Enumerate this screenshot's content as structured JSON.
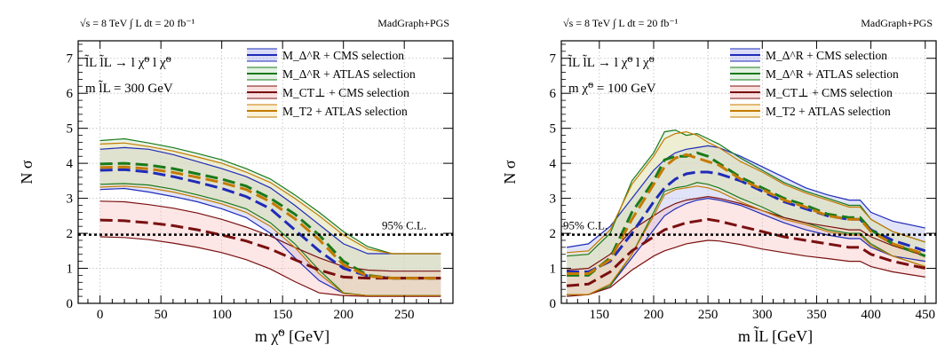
{
  "chart_data": [
    {
      "type": "line",
      "header_left": "√s = 8 TeV ∫ L dt = 20 fb⁻¹",
      "header_right": "MadGraph+PGS",
      "process": "l̃L l̃L → l χ̃⁰ l χ̃⁰",
      "fixed_mass": "m l̃L = 300 GeV",
      "xlabel": "m χ̃⁰ [GeV]",
      "ylabel": "N σ",
      "xlim": [
        -18,
        290
      ],
      "ylim": [
        0,
        7.5
      ],
      "xticks": [
        0,
        50,
        100,
        150,
        200,
        250
      ],
      "yticks": [
        0,
        1,
        2,
        3,
        4,
        5,
        6,
        7
      ],
      "grid": true,
      "legend_position": "top-right",
      "reference_line": {
        "value": 1.96,
        "label": "95% C.L."
      },
      "x": [
        0,
        20,
        40,
        60,
        80,
        100,
        120,
        140,
        160,
        180,
        200,
        220,
        240,
        260,
        280
      ],
      "series": [
        {
          "name": "M_Δ^R + CMS selection",
          "color": "#1f2bb8",
          "fill": "#aab0ee",
          "values": [
            3.8,
            3.82,
            3.75,
            3.62,
            3.46,
            3.28,
            3.05,
            2.7,
            2.1,
            1.5,
            1.0,
            0.78,
            0.72,
            0.72,
            0.72
          ],
          "upper": [
            4.4,
            4.45,
            4.4,
            4.25,
            4.05,
            3.85,
            3.62,
            3.3,
            2.8,
            2.25,
            1.7,
            1.42,
            1.42,
            1.42,
            1.42
          ],
          "lower": [
            3.25,
            3.28,
            3.18,
            3.05,
            2.9,
            2.7,
            2.45,
            2.0,
            1.3,
            0.65,
            0.28,
            0.22,
            0.22,
            0.22,
            0.22
          ]
        },
        {
          "name": "M_Δ^R + ATLAS selection",
          "color": "#1a7a1a",
          "fill": "#bfe0bf",
          "values": [
            3.98,
            4.0,
            3.95,
            3.85,
            3.7,
            3.55,
            3.35,
            3.0,
            2.55,
            1.95,
            1.2,
            0.8,
            0.72,
            0.72,
            0.72
          ],
          "upper": [
            4.65,
            4.7,
            4.58,
            4.45,
            4.28,
            4.1,
            3.85,
            3.55,
            3.1,
            2.6,
            2.05,
            1.62,
            1.42,
            1.42,
            1.42
          ],
          "lower": [
            3.4,
            3.42,
            3.38,
            3.26,
            3.1,
            2.92,
            2.7,
            2.3,
            1.7,
            0.95,
            0.3,
            0.22,
            0.22,
            0.22,
            0.22
          ]
        },
        {
          "name": "M_CT⊥ + CMS selection",
          "color": "#7a1010",
          "fill": "#f5b8b8",
          "values": [
            2.38,
            2.36,
            2.3,
            2.22,
            2.1,
            1.95,
            1.78,
            1.55,
            1.25,
            0.95,
            0.75,
            0.72,
            0.72,
            0.72,
            0.72
          ],
          "upper": [
            2.92,
            2.9,
            2.82,
            2.72,
            2.58,
            2.4,
            2.18,
            1.92,
            1.6,
            1.3,
            1.05,
            0.95,
            0.92,
            0.92,
            0.92
          ],
          "lower": [
            1.9,
            1.88,
            1.82,
            1.72,
            1.6,
            1.45,
            1.25,
            0.98,
            0.62,
            0.3,
            0.22,
            0.2,
            0.2,
            0.2,
            0.2
          ]
        },
        {
          "name": "M_T2 + ATLAS selection",
          "color": "#c47a00",
          "fill": "#f5e3a8",
          "values": [
            3.88,
            3.9,
            3.84,
            3.74,
            3.6,
            3.45,
            3.25,
            2.9,
            2.42,
            1.82,
            1.1,
            0.78,
            0.72,
            0.72,
            0.72
          ],
          "upper": [
            4.55,
            4.58,
            4.48,
            4.35,
            4.18,
            4.0,
            3.75,
            3.45,
            3.0,
            2.5,
            1.95,
            1.55,
            1.42,
            1.42,
            1.42
          ],
          "lower": [
            3.32,
            3.35,
            3.3,
            3.18,
            3.02,
            2.84,
            2.6,
            2.2,
            1.6,
            0.85,
            0.28,
            0.22,
            0.22,
            0.22,
            0.22
          ]
        }
      ]
    },
    {
      "type": "line",
      "header_left": "√s = 8 TeV ∫ L dt = 20 fb⁻¹",
      "header_right": "MadGraph+PGS",
      "process": "l̃L l̃L → l χ̃⁰ l χ̃⁰",
      "fixed_mass": "m χ̃⁰ = 100 GeV",
      "xlabel": "m l̃L [GeV]",
      "ylabel": "N σ",
      "xlim": [
        115,
        460
      ],
      "ylim": [
        0,
        7.5
      ],
      "xticks": [
        150,
        200,
        250,
        300,
        350,
        400,
        450
      ],
      "yticks": [
        0,
        1,
        2,
        3,
        4,
        5,
        6,
        7
      ],
      "grid": true,
      "legend_position": "top-right",
      "reference_line": {
        "value": 1.96,
        "label": "95% C.L."
      },
      "x": [
        120,
        140,
        160,
        180,
        200,
        210,
        220,
        230,
        240,
        250,
        260,
        280,
        300,
        320,
        340,
        360,
        380,
        390,
        400,
        420,
        450
      ],
      "series": [
        {
          "name": "M_Δ^R + CMS selection",
          "color": "#1f2bb8",
          "fill": "#aab0ee",
          "values": [
            0.9,
            0.9,
            1.2,
            2.0,
            2.9,
            3.3,
            3.55,
            3.7,
            3.75,
            3.75,
            3.7,
            3.5,
            3.2,
            2.9,
            2.7,
            2.5,
            2.4,
            2.4,
            2.1,
            1.8,
            1.5
          ],
          "upper": [
            1.6,
            1.7,
            2.2,
            3.0,
            3.8,
            4.1,
            4.3,
            4.4,
            4.45,
            4.5,
            4.45,
            4.2,
            3.9,
            3.6,
            3.3,
            3.1,
            2.95,
            2.95,
            2.6,
            2.35,
            2.15
          ],
          "lower": [
            0.25,
            0.25,
            0.5,
            1.3,
            2.1,
            2.5,
            2.7,
            2.85,
            2.95,
            3.0,
            2.95,
            2.8,
            2.55,
            2.3,
            2.1,
            1.95,
            1.85,
            1.85,
            1.6,
            1.35,
            1.2
          ]
        },
        {
          "name": "M_Δ^R + ATLAS selection",
          "color": "#1a7a1a",
          "fill": "#bfe0bf",
          "values": [
            0.8,
            0.8,
            1.3,
            2.6,
            3.5,
            4.1,
            4.2,
            4.2,
            4.3,
            4.2,
            4.0,
            3.6,
            3.3,
            3.0,
            2.8,
            2.55,
            2.45,
            2.45,
            2.1,
            1.7,
            1.35
          ],
          "upper": [
            1.35,
            1.4,
            2.0,
            3.5,
            4.3,
            4.9,
            4.95,
            4.8,
            4.85,
            4.7,
            4.55,
            4.15,
            3.8,
            3.45,
            3.2,
            3.0,
            2.8,
            2.8,
            2.4,
            2.05,
            1.75
          ],
          "lower": [
            0.25,
            0.25,
            0.5,
            1.4,
            2.6,
            3.2,
            3.3,
            3.35,
            3.45,
            3.4,
            3.3,
            3.0,
            2.75,
            2.45,
            2.3,
            2.1,
            2.0,
            2.0,
            1.7,
            1.35,
            1.05
          ]
        },
        {
          "name": "M_CT⊥ + CMS selection",
          "color": "#7a1010",
          "fill": "#f5b8b8",
          "values": [
            0.5,
            0.55,
            0.9,
            1.5,
            1.9,
            2.1,
            2.2,
            2.3,
            2.35,
            2.4,
            2.35,
            2.2,
            2.05,
            1.9,
            1.8,
            1.7,
            1.6,
            1.6,
            1.4,
            1.2,
            1.0
          ],
          "upper": [
            0.95,
            1.0,
            1.4,
            2.1,
            2.5,
            2.7,
            2.85,
            2.95,
            3.0,
            3.05,
            3.0,
            2.85,
            2.65,
            2.45,
            2.3,
            2.2,
            2.1,
            2.1,
            1.9,
            1.65,
            1.35
          ],
          "lower": [
            0.2,
            0.25,
            0.45,
            0.95,
            1.35,
            1.5,
            1.6,
            1.7,
            1.75,
            1.8,
            1.78,
            1.68,
            1.55,
            1.45,
            1.35,
            1.28,
            1.2,
            1.2,
            1.05,
            0.9,
            0.75
          ]
        },
        {
          "name": "M_T2 + ATLAS selection",
          "color": "#c47a00",
          "fill": "#f5e3a8",
          "values": [
            0.85,
            0.85,
            1.25,
            2.4,
            3.4,
            3.9,
            4.15,
            4.25,
            4.15,
            4.05,
            3.95,
            3.55,
            3.25,
            2.95,
            2.75,
            2.5,
            2.4,
            2.4,
            2.05,
            1.7,
            1.4
          ],
          "upper": [
            1.45,
            1.5,
            2.1,
            3.4,
            4.2,
            4.7,
            4.85,
            4.9,
            4.8,
            4.6,
            4.45,
            4.05,
            3.75,
            3.4,
            3.15,
            2.95,
            2.75,
            2.75,
            2.4,
            2.05,
            1.75
          ],
          "lower": [
            0.25,
            0.25,
            0.55,
            1.4,
            2.5,
            3.1,
            3.25,
            3.3,
            3.35,
            3.3,
            3.2,
            2.9,
            2.65,
            2.4,
            2.25,
            2.05,
            1.95,
            1.95,
            1.65,
            1.35,
            1.05
          ]
        }
      ]
    }
  ]
}
